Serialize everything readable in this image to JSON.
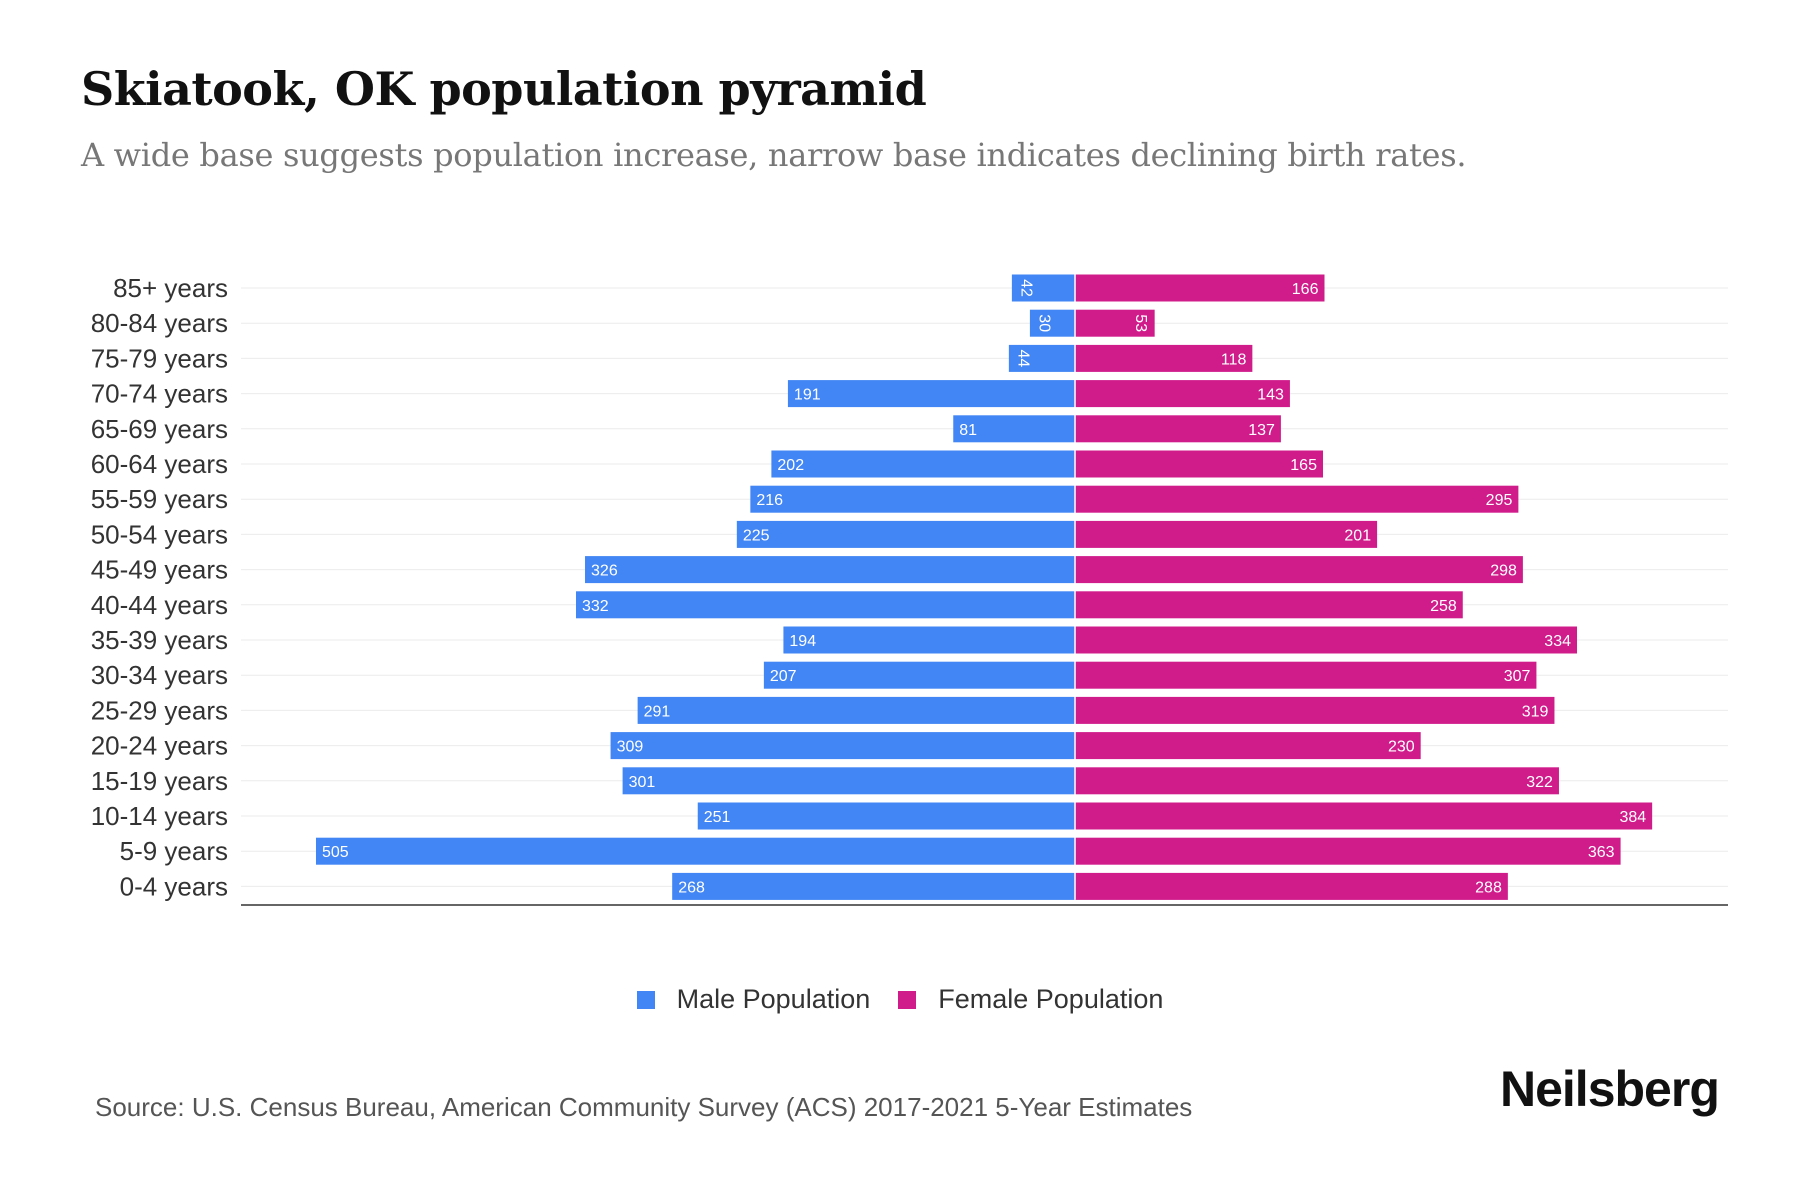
{
  "chart_data": {
    "type": "bar",
    "orientation": "horizontal-pyramid",
    "title": "Skiatook, OK population pyramid",
    "subtitle": "A wide base suggests population increase, narrow base indicates declining birth rates.",
    "categories": [
      "85+ years",
      "80-84 years",
      "75-79 years",
      "70-74 years",
      "65-69 years",
      "60-64 years",
      "55-59 years",
      "50-54 years",
      "45-49 years",
      "40-44 years",
      "35-39 years",
      "30-34 years",
      "25-29 years",
      "20-24 years",
      "15-19 years",
      "10-14 years",
      "5-9 years",
      "0-4 years"
    ],
    "series": [
      {
        "name": "Male Population",
        "color": "#4285f4",
        "values": [
          42,
          30,
          44,
          191,
          81,
          202,
          216,
          225,
          326,
          332,
          194,
          207,
          291,
          309,
          301,
          251,
          505,
          268
        ]
      },
      {
        "name": "Female Population",
        "color": "#d01c8b",
        "values": [
          166,
          53,
          118,
          143,
          137,
          165,
          295,
          201,
          298,
          258,
          334,
          307,
          319,
          230,
          322,
          384,
          363,
          288
        ]
      }
    ],
    "legend_position": "bottom-center",
    "grid": true
  },
  "source": "Source: U.S. Census Bureau, American Community Survey (ACS) 2017-2021 5-Year Estimates",
  "logo": "Neilsberg"
}
